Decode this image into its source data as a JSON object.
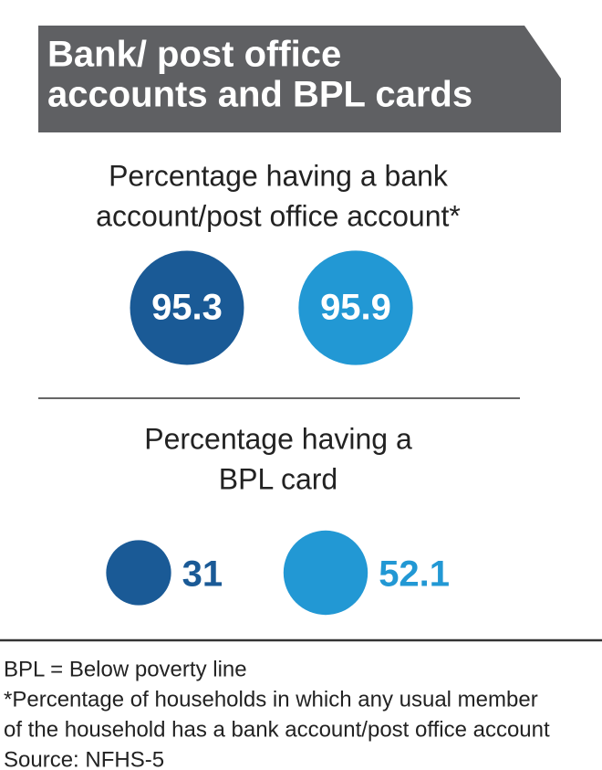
{
  "header": {
    "title_lines": [
      "Bank/ post office",
      "accounts and BPL cards"
    ]
  },
  "colors": [
    "#1a5a96",
    "#2298d4"
  ],
  "panels": [
    {
      "label_lines": [
        "Percentage having a bank",
        "account/post office account*"
      ],
      "values": [
        95.3,
        95.9
      ]
    },
    {
      "label_lines": [
        "Percentage having a",
        "BPL card"
      ],
      "values": [
        31,
        52.1
      ]
    }
  ],
  "notes": [
    "BPL = Below poverty line",
    "*Percentage of households in which any usual member",
    "of the household has a bank account/post office account",
    "Source: NFHS-5"
  ]
}
